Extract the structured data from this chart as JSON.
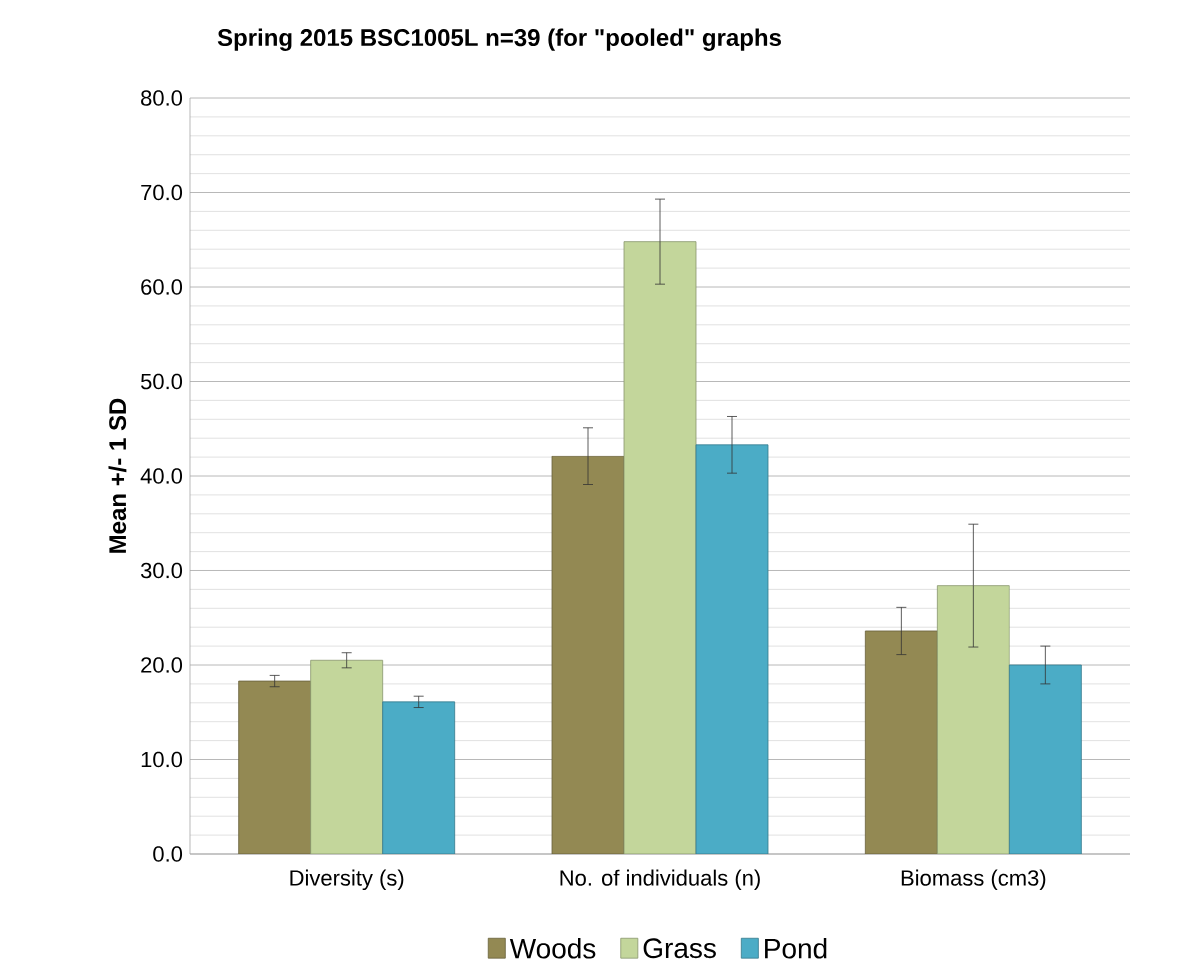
{
  "chart_data": {
    "type": "bar",
    "title": "Spring 2015 BSC1005L n=39 (for \"pooled\" graphs",
    "ylabel": "Mean +/- 1 SD",
    "categories": [
      "Diversity (s)",
      "No. of individuals (n)",
      "Biomass (cm3)"
    ],
    "series": [
      {
        "name": "Woods",
        "color": "#938953",
        "values": [
          18.3,
          42.1,
          23.6
        ],
        "errors": [
          0.6,
          3.0,
          2.5
        ]
      },
      {
        "name": "Grass",
        "color": "#c3d69b",
        "values": [
          20.5,
          64.8,
          28.4
        ],
        "errors": [
          0.8,
          4.5,
          6.5
        ]
      },
      {
        "name": "Pond",
        "color": "#4bacc6",
        "values": [
          16.1,
          43.3,
          20.0
        ],
        "errors": [
          0.6,
          3.0,
          2.0
        ]
      }
    ],
    "ylim": [
      0,
      80
    ],
    "yticks": [
      {
        "value": 0,
        "label": "0.0"
      },
      {
        "value": 10,
        "label": "10.0"
      },
      {
        "value": 20,
        "label": "20.0"
      },
      {
        "value": 30,
        "label": "30.0"
      },
      {
        "value": 40,
        "label": "40.0"
      },
      {
        "value": 50,
        "label": "50.0"
      },
      {
        "value": 60,
        "label": "60.0"
      },
      {
        "value": 70,
        "label": "70.0"
      },
      {
        "value": 80,
        "label": "80.0"
      }
    ],
    "grid": "y",
    "legend": "bottom"
  }
}
